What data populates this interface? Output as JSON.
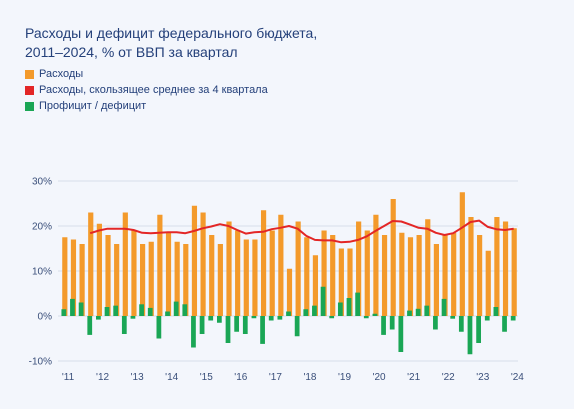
{
  "title": {
    "line1": "Расходы и дефицит федерального бюджета,",
    "line2": "2011–2024, % от ВВП за квартал"
  },
  "colors": {
    "expenses": "#f39a2b",
    "moving_avg": "#e32626",
    "balance": "#1aa655",
    "grid": "#d7deea",
    "axis_text": "#3a4f7a",
    "background": "#f3f6fc"
  },
  "chart_data": {
    "type": "bar",
    "legend": [
      "Расходы",
      "Расходы, скользящее среднее за 4 квартала",
      "Профицит / дефицит"
    ],
    "legend_position": "top-left",
    "y_ticks": [
      "30%",
      "20%",
      "10%",
      "0%",
      "-10%"
    ],
    "ylim": [
      -10,
      30
    ],
    "x_ticks": [
      "'11",
      "'12",
      "'13",
      "'14",
      "'15",
      "'16",
      "'17",
      "'18",
      "'19",
      "'20",
      "'21",
      "'22",
      "'23",
      "'24"
    ],
    "grid": true,
    "series": [
      {
        "name": "Расходы",
        "type": "bar",
        "values": [
          17.5,
          17,
          16,
          23,
          20.5,
          18,
          16,
          23,
          19,
          16,
          16.5,
          22.5,
          18.5,
          16.5,
          16,
          24.5,
          23,
          18,
          16,
          21,
          19,
          17,
          17,
          23.5,
          19,
          22.5,
          10.5,
          21,
          17.5,
          13.5,
          19,
          18,
          15,
          15,
          21,
          19,
          22.5,
          18,
          26,
          18.5,
          17.5,
          18,
          21.5,
          16,
          18,
          18.5,
          27.5,
          22,
          18,
          14.5,
          22,
          21,
          19.5
        ]
      },
      {
        "name": "Профицит / дефицит",
        "type": "bar",
        "values": [
          1.5,
          3.8,
          3,
          -4.2,
          -0.8,
          2,
          2.3,
          -4,
          -0.6,
          2.6,
          1.8,
          -5,
          1,
          3.2,
          2.6,
          -7,
          -4,
          -1,
          -1.5,
          -6,
          -3.5,
          -4,
          -0.5,
          -6.2,
          -1,
          -0.8,
          1,
          -4.5,
          1.5,
          2.3,
          6.5,
          -0.5,
          3,
          4,
          5.2,
          -0.5,
          0.5,
          -4.2,
          -3,
          -8,
          1.2,
          1.6,
          2.3,
          -3,
          3.8,
          -0.6,
          -3.5,
          -8.5,
          -6,
          -1,
          2,
          -3.5,
          -1
        ]
      },
      {
        "name": "Расходы, скользящее среднее за 4 квартала",
        "type": "line",
        "values": [
          null,
          null,
          null,
          18.4,
          19,
          19.4,
          19.4,
          19.4,
          19.1,
          18.5,
          18.4,
          18.5,
          18.6,
          18.6,
          18.4,
          18.9,
          19.5,
          19.9,
          20.4,
          20,
          19.1,
          18.3,
          18.6,
          18.7,
          19.3,
          19.6,
          20,
          19.4,
          17.8,
          16.9,
          16.8,
          16.8,
          16.4,
          16.5,
          16.9,
          17.7,
          18.9,
          20,
          21.1,
          21,
          20.3,
          19.6,
          19.4,
          18.5,
          18,
          18.4,
          19.6,
          20.9,
          21.2,
          19.8,
          19.3,
          19.1,
          19.4
        ]
      }
    ]
  }
}
